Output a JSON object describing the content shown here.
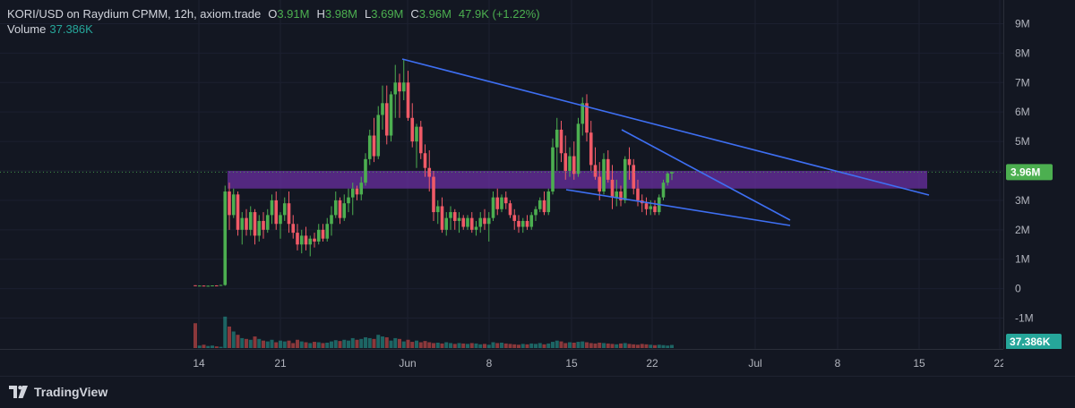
{
  "legend": {
    "symbol": "KORI/USD on Raydium CPMM, 12h, axiom.trade",
    "o_key": "O",
    "o_val": "3.91M",
    "h_key": "H",
    "h_val": "3.98M",
    "l_key": "L",
    "l_val": "3.69M",
    "c_key": "C",
    "c_val": "3.96M",
    "change": "47.9K (+1.22%)",
    "volume_label": "Volume",
    "volume_val": "37.386K"
  },
  "price_axis": {
    "labels": [
      "9M",
      "8M",
      "7M",
      "6M",
      "5M",
      "4M",
      "3M",
      "2M",
      "1M",
      "0",
      "-1M"
    ],
    "current_price_tag": "3.96M",
    "current_volume_tag": "37.386K"
  },
  "time_axis": {
    "labels": [
      "14",
      "21",
      "Jun",
      "8",
      "15",
      "22",
      "Jul",
      "8",
      "15",
      "22"
    ]
  },
  "footer": {
    "brand": "TradingView"
  },
  "colors": {
    "background": "#131722",
    "up": "#4caf50",
    "down": "#f05a67",
    "trendline": "#3e6ff2",
    "zone": "#6a2fa0",
    "price_tag": "#4caf50",
    "volume_tag": "#26a69a"
  },
  "chart_data": {
    "type": "candlestick",
    "interval": "12h",
    "ylim": [
      -1500000,
      9500000
    ],
    "zone": {
      "low": 3400000,
      "high": 4000000
    },
    "last_price": 3960000,
    "candles": [
      [
        115000,
        115000,
        100000,
        100000
      ],
      [
        100000,
        110000,
        90000,
        105000
      ],
      [
        105000,
        108000,
        95000,
        95000
      ],
      [
        95000,
        105000,
        90000,
        100000
      ],
      [
        100000,
        112000,
        95000,
        110000
      ],
      [
        110000,
        115000,
        100000,
        100000
      ],
      [
        100000,
        130000,
        95000,
        125000
      ],
      [
        125000,
        3500000,
        100000,
        3300000
      ],
      [
        3300000,
        3600000,
        2000000,
        2500000
      ],
      [
        2500000,
        3400000,
        2400000,
        3200000
      ],
      [
        3200000,
        3300000,
        1800000,
        2000000
      ],
      [
        2000000,
        2600000,
        1500000,
        2400000
      ],
      [
        2400000,
        2700000,
        1800000,
        2000000
      ],
      [
        2000000,
        2800000,
        1800000,
        2600000
      ],
      [
        2600000,
        2700000,
        1500000,
        1800000
      ],
      [
        1800000,
        2500000,
        1600000,
        2300000
      ],
      [
        2300000,
        2600000,
        1700000,
        2000000
      ],
      [
        2000000,
        2700000,
        1900000,
        2500000
      ],
      [
        2500000,
        3200000,
        2200000,
        3000000
      ],
      [
        3000000,
        3300000,
        2000000,
        2200000
      ],
      [
        2200000,
        2600000,
        1700000,
        2500000
      ],
      [
        2500000,
        3100000,
        2300000,
        2900000
      ],
      [
        2900000,
        3300000,
        1900000,
        2200000
      ],
      [
        2200000,
        2500000,
        1700000,
        1900000
      ],
      [
        1900000,
        2200000,
        1300000,
        1500000
      ],
      [
        1500000,
        2000000,
        1200000,
        1800000
      ],
      [
        1800000,
        2100000,
        1300000,
        1500000
      ],
      [
        1500000,
        1800000,
        1100000,
        1700000
      ],
      [
        1700000,
        1900000,
        1400000,
        1600000
      ],
      [
        1600000,
        2200000,
        1500000,
        2000000
      ],
      [
        2000000,
        2200000,
        1600000,
        1700000
      ],
      [
        1700000,
        2400000,
        1600000,
        2200000
      ],
      [
        2200000,
        2800000,
        1800000,
        2500000
      ],
      [
        2500000,
        3300000,
        2400000,
        3000000
      ],
      [
        3000000,
        3100000,
        2200000,
        2400000
      ],
      [
        2400000,
        3200000,
        2300000,
        2900000
      ],
      [
        2900000,
        3400000,
        2600000,
        3100000
      ],
      [
        3100000,
        3600000,
        2500000,
        3400000
      ],
      [
        3400000,
        3500000,
        3000000,
        3200000
      ],
      [
        3200000,
        3800000,
        3000000,
        3600000
      ],
      [
        3600000,
        4600000,
        3500000,
        4400000
      ],
      [
        4400000,
        5400000,
        4200000,
        5200000
      ],
      [
        5200000,
        5800000,
        4300000,
        4500000
      ],
      [
        4500000,
        6200000,
        4400000,
        5900000
      ],
      [
        5900000,
        6900000,
        5400000,
        6300000
      ],
      [
        6300000,
        6900000,
        4900000,
        5200000
      ],
      [
        5200000,
        6700000,
        5000000,
        6600000
      ],
      [
        6600000,
        7600000,
        5800000,
        7000000
      ],
      [
        7000000,
        7300000,
        5800000,
        6700000
      ],
      [
        6700000,
        7800000,
        6400000,
        7000000
      ],
      [
        7000000,
        7400000,
        5700000,
        5800000
      ],
      [
        5800000,
        6300000,
        4800000,
        5000000
      ],
      [
        5000000,
        5600000,
        4100000,
        5500000
      ],
      [
        5500000,
        5700000,
        4400000,
        4600000
      ],
      [
        4600000,
        4900000,
        3800000,
        4100000
      ],
      [
        4100000,
        4700000,
        3300000,
        3800000
      ],
      [
        3800000,
        4000000,
        2300000,
        2600000
      ],
      [
        2600000,
        3000000,
        2200000,
        2800000
      ],
      [
        2800000,
        3100000,
        1900000,
        2000000
      ],
      [
        2000000,
        2600000,
        1800000,
        2400000
      ],
      [
        2400000,
        2800000,
        2000000,
        2600000
      ],
      [
        2600000,
        2700000,
        2000000,
        2300000
      ],
      [
        2300000,
        2600000,
        1900000,
        2400000
      ],
      [
        2400000,
        2500000,
        2000000,
        2100000
      ],
      [
        2100000,
        2500000,
        2000000,
        2400000
      ],
      [
        2400000,
        2600000,
        1900000,
        2000000
      ],
      [
        2000000,
        2300000,
        1800000,
        2100000
      ],
      [
        2100000,
        2600000,
        1900000,
        2400000
      ],
      [
        2400000,
        2700000,
        2000000,
        2200000
      ],
      [
        2200000,
        2600000,
        1600000,
        2400000
      ],
      [
        2400000,
        3300000,
        2300000,
        3100000
      ],
      [
        3100000,
        3400000,
        2500000,
        2700000
      ],
      [
        2700000,
        3200000,
        2600000,
        3100000
      ],
      [
        3100000,
        3300000,
        2700000,
        2900000
      ],
      [
        2900000,
        3000000,
        2400000,
        2500000
      ],
      [
        2500000,
        2700000,
        2000000,
        2300000
      ],
      [
        2300000,
        2500000,
        1900000,
        2100000
      ],
      [
        2100000,
        2400000,
        1900000,
        2300000
      ],
      [
        2300000,
        2500000,
        2000000,
        2100000
      ],
      [
        2100000,
        2600000,
        2000000,
        2500000
      ],
      [
        2500000,
        2800000,
        2300000,
        2700000
      ],
      [
        2700000,
        3100000,
        2600000,
        3000000
      ],
      [
        3000000,
        3300000,
        2500000,
        2600000
      ],
      [
        2600000,
        3400000,
        2500000,
        3300000
      ],
      [
        3300000,
        5100000,
        3200000,
        4800000
      ],
      [
        4800000,
        5800000,
        4000000,
        5400000
      ],
      [
        5400000,
        5700000,
        4300000,
        4600000
      ],
      [
        4600000,
        5200000,
        3700000,
        4000000
      ],
      [
        4000000,
        4800000,
        3800000,
        4500000
      ],
      [
        4500000,
        5000000,
        3700000,
        3900000
      ],
      [
        3900000,
        5800000,
        3800000,
        5600000
      ],
      [
        5600000,
        6500000,
        5200000,
        6300000
      ],
      [
        6300000,
        6600000,
        5000000,
        5300000
      ],
      [
        5300000,
        5700000,
        4000000,
        4200000
      ],
      [
        4200000,
        4800000,
        3700000,
        3800000
      ],
      [
        3800000,
        4300000,
        3000000,
        3300000
      ],
      [
        3300000,
        4600000,
        3200000,
        4400000
      ],
      [
        4400000,
        4700000,
        3600000,
        3700000
      ],
      [
        3700000,
        4200000,
        2700000,
        3100000
      ],
      [
        3100000,
        3700000,
        2800000,
        3300000
      ],
      [
        3300000,
        3500000,
        2800000,
        3000000
      ],
      [
        3000000,
        4500000,
        2900000,
        4400000
      ],
      [
        4400000,
        4800000,
        3700000,
        4200000
      ],
      [
        4200000,
        4400000,
        3200000,
        3400000
      ],
      [
        3400000,
        3700000,
        2800000,
        3000000
      ],
      [
        3000000,
        3200000,
        2600000,
        2900000
      ],
      [
        2900000,
        3100000,
        2500000,
        2700000
      ],
      [
        2700000,
        3000000,
        2500000,
        2800000
      ],
      [
        2800000,
        3000000,
        2500000,
        2600000
      ],
      [
        2600000,
        3200000,
        2500000,
        3100000
      ],
      [
        3100000,
        3700000,
        3000000,
        3600000
      ],
      [
        3600000,
        3950000,
        3500000,
        3910000
      ],
      [
        3910000,
        3980000,
        3690000,
        3960000
      ]
    ],
    "volume": {
      "ylim": [
        0,
        400000
      ],
      "values": [
        300000,
        30000,
        40000,
        25000,
        30000,
        20000,
        15000,
        380000,
        260000,
        200000,
        160000,
        120000,
        110000,
        100000,
        140000,
        110000,
        90000,
        80000,
        100000,
        70000,
        90000,
        80000,
        90000,
        60000,
        100000,
        80000,
        70000,
        60000,
        75000,
        70000,
        60000,
        65000,
        80000,
        95000,
        85000,
        100000,
        90000,
        120000,
        100000,
        110000,
        130000,
        120000,
        110000,
        160000,
        140000,
        130000,
        90000,
        120000,
        110000,
        80000,
        100000,
        75000,
        90000,
        70000,
        85000,
        70000,
        60000,
        65000,
        55000,
        70000,
        60000,
        50000,
        60000,
        55000,
        50000,
        60000,
        55000,
        45000,
        50000,
        40000,
        70000,
        60000,
        65000,
        55000,
        50000,
        45000,
        40000,
        50000,
        45000,
        55000,
        50000,
        60000,
        45000,
        55000,
        75000,
        90000,
        80000,
        60000,
        70000,
        65000,
        75000,
        80000,
        70000,
        60000,
        55000,
        65000,
        60000,
        55000,
        50000,
        45000,
        55000,
        60000,
        50000,
        45000,
        40000,
        50000,
        45000,
        40000,
        35000,
        40000,
        35000,
        30000,
        37386
      ]
    }
  },
  "annotations": {
    "trendline_label": "",
    "wedge_label": ""
  }
}
